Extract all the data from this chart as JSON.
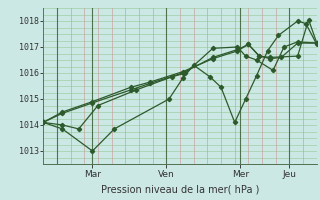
{
  "xlabel": "Pression niveau de la mer( hPa )",
  "bg_color": "#cce8e4",
  "line_color": "#2d5a2d",
  "ylim": [
    1012.5,
    1018.5
  ],
  "yticks": [
    1013,
    1014,
    1015,
    1016,
    1017,
    1018
  ],
  "xtick_labels": [
    "Mar",
    "Ven",
    "Mer",
    "Jeu"
  ],
  "xtick_positions": [
    0.18,
    0.45,
    0.72,
    0.9
  ],
  "vline_positions": [
    0.05,
    0.18,
    0.45,
    0.72,
    0.9
  ],
  "series_x": [
    [
      0.0,
      0.07,
      0.13,
      0.2,
      0.34,
      0.47,
      0.52,
      0.62,
      0.71,
      0.74,
      0.78,
      0.84,
      0.88,
      0.93,
      1.0
    ],
    [
      0.0,
      0.07,
      0.18,
      0.26,
      0.46,
      0.51,
      0.55,
      0.61,
      0.65,
      0.7,
      0.74,
      0.78,
      0.82,
      0.86,
      0.93,
      0.96,
      1.0
    ],
    [
      0.0,
      0.07,
      0.18,
      0.32,
      0.39,
      0.51,
      0.62,
      0.71,
      0.75,
      0.79,
      0.83,
      0.87,
      0.93,
      1.0
    ],
    [
      0.0,
      0.07,
      0.18,
      0.32,
      0.39,
      0.51,
      0.62,
      0.71,
      0.75,
      0.79,
      0.83,
      0.93,
      0.97,
      1.0
    ]
  ],
  "series_y": [
    [
      1014.1,
      1014.0,
      1013.85,
      1014.75,
      1015.35,
      1015.85,
      1016.0,
      1016.95,
      1017.0,
      1016.65,
      1016.5,
      1016.1,
      1017.0,
      1017.2,
      1017.15
    ],
    [
      1014.1,
      1013.85,
      1013.0,
      1013.85,
      1015.0,
      1015.8,
      1016.3,
      1015.85,
      1015.45,
      1014.1,
      1015.0,
      1015.9,
      1016.85,
      1017.45,
      1018.0,
      1017.9,
      1017.1
    ],
    [
      1014.1,
      1014.45,
      1014.85,
      1015.35,
      1015.6,
      1016.0,
      1016.6,
      1016.9,
      1017.1,
      1016.65,
      1016.55,
      1016.6,
      1017.15,
      1017.15
    ],
    [
      1014.1,
      1014.5,
      1014.9,
      1015.45,
      1015.65,
      1016.05,
      1016.55,
      1016.85,
      1017.1,
      1016.65,
      1016.6,
      1016.65,
      1018.05,
      1017.15
    ]
  ]
}
